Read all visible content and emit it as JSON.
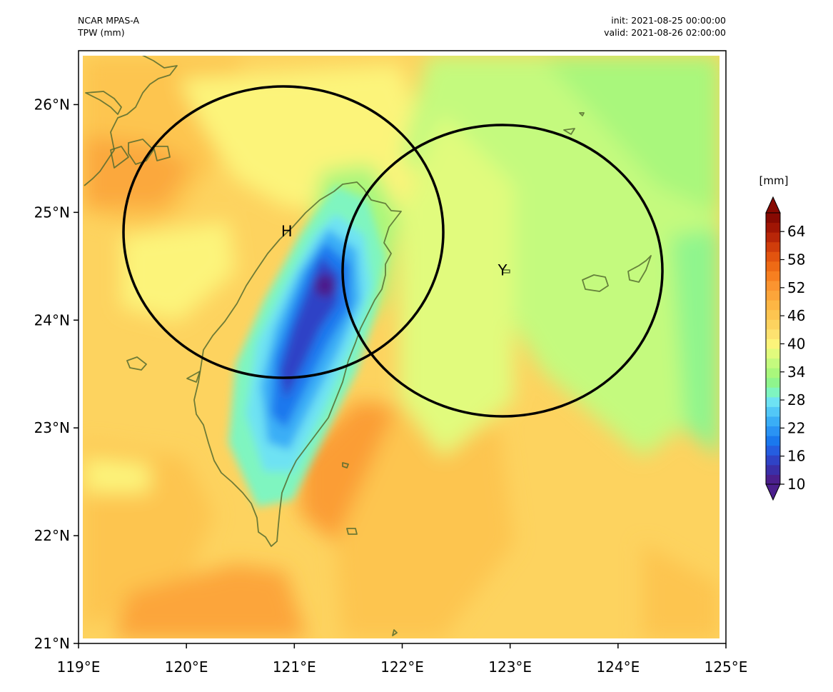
{
  "header": {
    "model": "NCAR MPAS-A",
    "field": "TPW (mm)",
    "init": "init: 2021-08-25 00:00:00",
    "valid": "valid: 2021-08-26 02:00:00"
  },
  "map": {
    "lon_range": [
      119,
      125
    ],
    "lat_range": [
      21,
      26.5
    ],
    "x_ticks": [
      "119°E",
      "120°E",
      "121°E",
      "122°E",
      "123°E",
      "124°E",
      "125°E"
    ],
    "y_ticks": [
      "21°N",
      "22°N",
      "23°N",
      "24°N",
      "25°N",
      "26°N"
    ],
    "coastline_color": "#556b2f",
    "background_field_color": "#fdd65c"
  },
  "markers": [
    {
      "label": "H",
      "lon": 120.93,
      "lat": 24.83
    },
    {
      "label": "Y",
      "lon": 122.93,
      "lat": 24.47
    }
  ],
  "colorbar": {
    "unit": "[mm]",
    "ticks": [
      "10",
      "16",
      "22",
      "28",
      "34",
      "40",
      "46",
      "52",
      "58",
      "64"
    ],
    "min": 10,
    "max": 68,
    "colors": [
      "#4b1f8c",
      "#3a2fa8",
      "#2f43c6",
      "#255de0",
      "#1a78ee",
      "#2a93f4",
      "#3aaef6",
      "#52c8f7",
      "#6ee2f3",
      "#7ff5c0",
      "#8ff58d",
      "#a9f77c",
      "#c4fa7e",
      "#e1fb7d",
      "#fcf47a",
      "#fde270",
      "#fdd35f",
      "#fdc550",
      "#fdb644",
      "#fca53a",
      "#fb9430",
      "#f77f20",
      "#ee6a15",
      "#e2540f",
      "#d03d0b",
      "#b82608",
      "#a01504",
      "#870a02"
    ]
  }
}
